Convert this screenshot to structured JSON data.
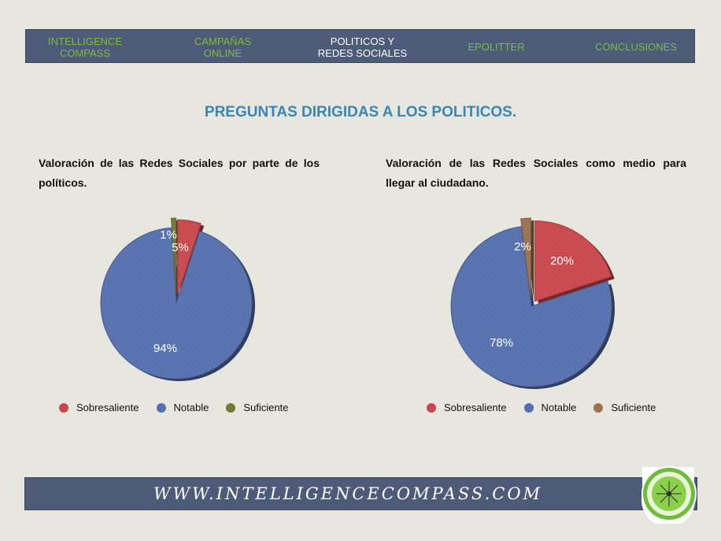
{
  "nav": {
    "items": [
      {
        "label": "INTELLIGENCE\nCOMPASS",
        "active": false
      },
      {
        "label": "CAMPAÑAS\nONLINE",
        "active": false
      },
      {
        "label": "POLITICOS Y\nREDES SOCIALES",
        "active": true
      },
      {
        "label": "EPOLITTER",
        "active": false
      },
      {
        "label": "CONCLUSIONES",
        "active": false
      }
    ]
  },
  "heading": "PREGUNTAS DIRIGIDAS A LOS POLITICOS.",
  "footer": {
    "url": "WWW.INTELLIGENCECOMPASS.COM"
  },
  "colors": {
    "sobresaliente": "#c8474c",
    "notable": "#5670ae",
    "suficiente_1": "#6f7a32",
    "suficiente_2": "#9a7350",
    "nav_bg": "#4d5a78",
    "nav_text": "#7cbf3a",
    "heading": "#3a86b4"
  },
  "chart_data": [
    {
      "type": "pie",
      "title": "Valoración de las Redes Sociales por parte de los políticos.",
      "series": [
        {
          "name": "Sobresaliente",
          "value": 5,
          "label": "5%",
          "color": "#c8474c"
        },
        {
          "name": "Notable",
          "value": 94,
          "label": "94%",
          "color": "#5670ae"
        },
        {
          "name": "Suficiente",
          "value": 1,
          "label": "1%",
          "color": "#6f7a32"
        }
      ],
      "legend": "bottom"
    },
    {
      "type": "pie",
      "title": "Valoración de las Redes Sociales como medio para llegar al ciudadano.",
      "series": [
        {
          "name": "Sobresaliente",
          "value": 20,
          "label": "20%",
          "color": "#c8474c"
        },
        {
          "name": "Notable",
          "value": 78,
          "label": "78%",
          "color": "#5670ae"
        },
        {
          "name": "Suficiente",
          "value": 2,
          "label": "2%",
          "color": "#9a7350"
        }
      ],
      "legend": "bottom"
    }
  ]
}
